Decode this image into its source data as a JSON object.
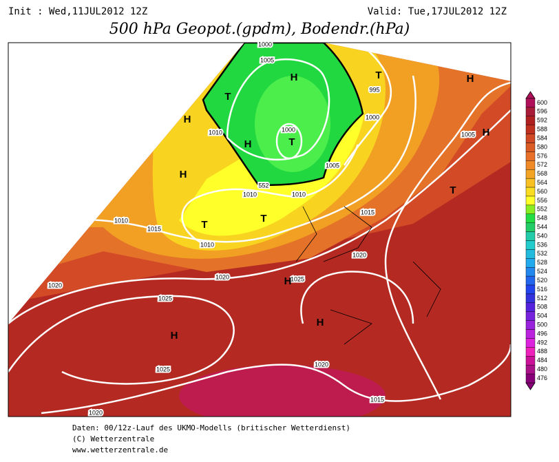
{
  "header": {
    "init": "Init : Wed,11JUL2012 12Z",
    "valid": "Valid: Tue,17JUL2012 12Z",
    "title": "500 hPa Geopot.(gpdm), Bodendr.(hPa)"
  },
  "map": {
    "isobar_labels": [
      "1000",
      "1005",
      "995",
      "1000",
      "1010",
      "1000",
      "1005",
      "1005",
      "552",
      "1010",
      "1010",
      "1015",
      "1010",
      "1015",
      "1010",
      "1020",
      "1020",
      "1025",
      "1020",
      "1025",
      "1020",
      "1025",
      "1015",
      "1020"
    ],
    "centers": [
      "H",
      "T",
      "H",
      "T",
      "H",
      "H",
      "T",
      "H",
      "H",
      "T",
      "T",
      "T",
      "H",
      "H",
      "H"
    ]
  },
  "colorbar": {
    "levels": [
      600,
      596,
      592,
      588,
      584,
      580,
      576,
      572,
      568,
      564,
      560,
      556,
      552,
      548,
      544,
      540,
      536,
      532,
      528,
      524,
      520,
      516,
      512,
      508,
      504,
      500,
      496,
      492,
      488,
      484,
      480,
      476
    ],
    "colors": [
      "#b0105a",
      "#a81c3a",
      "#b02020",
      "#c0301e",
      "#d04824",
      "#dc5c26",
      "#e87028",
      "#f08a26",
      "#f4a424",
      "#f8c022",
      "#fadc20",
      "#ffff28",
      "#88ee22",
      "#22dd44",
      "#22cc66",
      "#22ccaa",
      "#22cccc",
      "#22bbdd",
      "#22aaee",
      "#2288ee",
      "#2266ee",
      "#2244ee",
      "#3333dd",
      "#5522dd",
      "#7722dd",
      "#9922dd",
      "#bb22dd",
      "#dd22dd",
      "#ee22bb",
      "#cc1199",
      "#aa1188",
      "#880077"
    ]
  },
  "footer": [
    "Daten: 00/12z-Lauf des UKMO-Modells (britischer Wetterdienst)",
    "(C) Wetterzentrale",
    "www.wetterzentrale.de"
  ]
}
